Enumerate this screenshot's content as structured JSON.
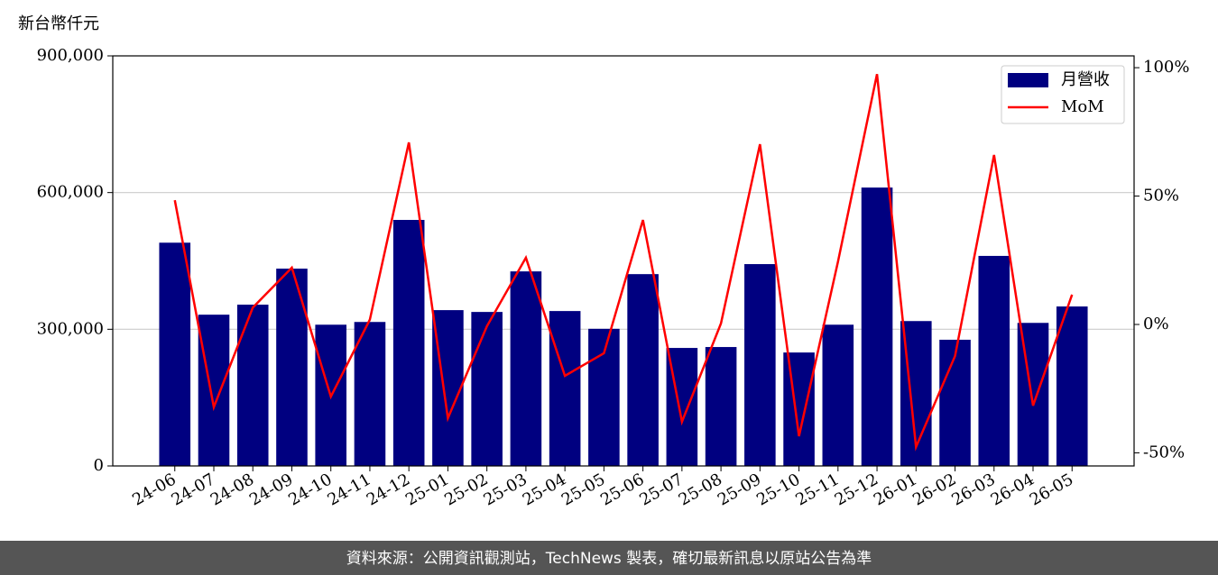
{
  "chart_data": {
    "type": "bar_line",
    "y_label": "新台幣仟元",
    "categories": [
      "24-06",
      "24-07",
      "24-08",
      "24-09",
      "24-10",
      "24-11",
      "24-12",
      "25-01",
      "25-02",
      "25-03",
      "25-04",
      "25-05",
      "25-06",
      "25-07",
      "25-08",
      "25-09",
      "25-10",
      "25-11",
      "25-12",
      "26-01",
      "26-02",
      "26-03",
      "26-04",
      "26-05"
    ],
    "series": [
      {
        "name": "月營收",
        "type": "bar",
        "color": "#000080",
        "values": [
          490000,
          332000,
          354000,
          433000,
          310000,
          316000,
          540000,
          342000,
          338000,
          427000,
          340000,
          301000,
          421000,
          259000,
          261000,
          443000,
          249000,
          310000,
          611000,
          318000,
          277000,
          461000,
          314000,
          350000
        ]
      },
      {
        "name": "MoM",
        "type": "line",
        "axis": "y2",
        "color": "#ff0000",
        "values": [
          48.4,
          -32.2,
          6.6,
          22.1,
          -28.1,
          1.9,
          70.9,
          -36.5,
          -0.7,
          26.0,
          -20.0,
          -11.2,
          40.7,
          -37.9,
          0.4,
          70.2,
          -43.5,
          24.5,
          97.5,
          -47.7,
          -12.3,
          66.0,
          -31.6,
          11.6
        ]
      }
    ],
    "ylim": [
      0,
      900000
    ],
    "yticks": [
      0,
      {
        "value": 300000,
        "label": "300,000"
      },
      {
        "value": 600000,
        "label": "600,000"
      },
      {
        "value": 900000,
        "label": "900,000"
      }
    ],
    "y2lim": [
      -55.1,
      104.6
    ],
    "y2ticks": [
      {
        "value": -50,
        "label": "-50%"
      },
      {
        "value": 0,
        "label": "0%"
      },
      {
        "value": 50,
        "label": "50%"
      },
      {
        "value": 100,
        "label": "100%"
      }
    ],
    "grid": true,
    "legend": "upper right",
    "footer": "資料來源：公開資訊觀測站，TechNews 製表，確切最新訊息以原站公告為準"
  }
}
